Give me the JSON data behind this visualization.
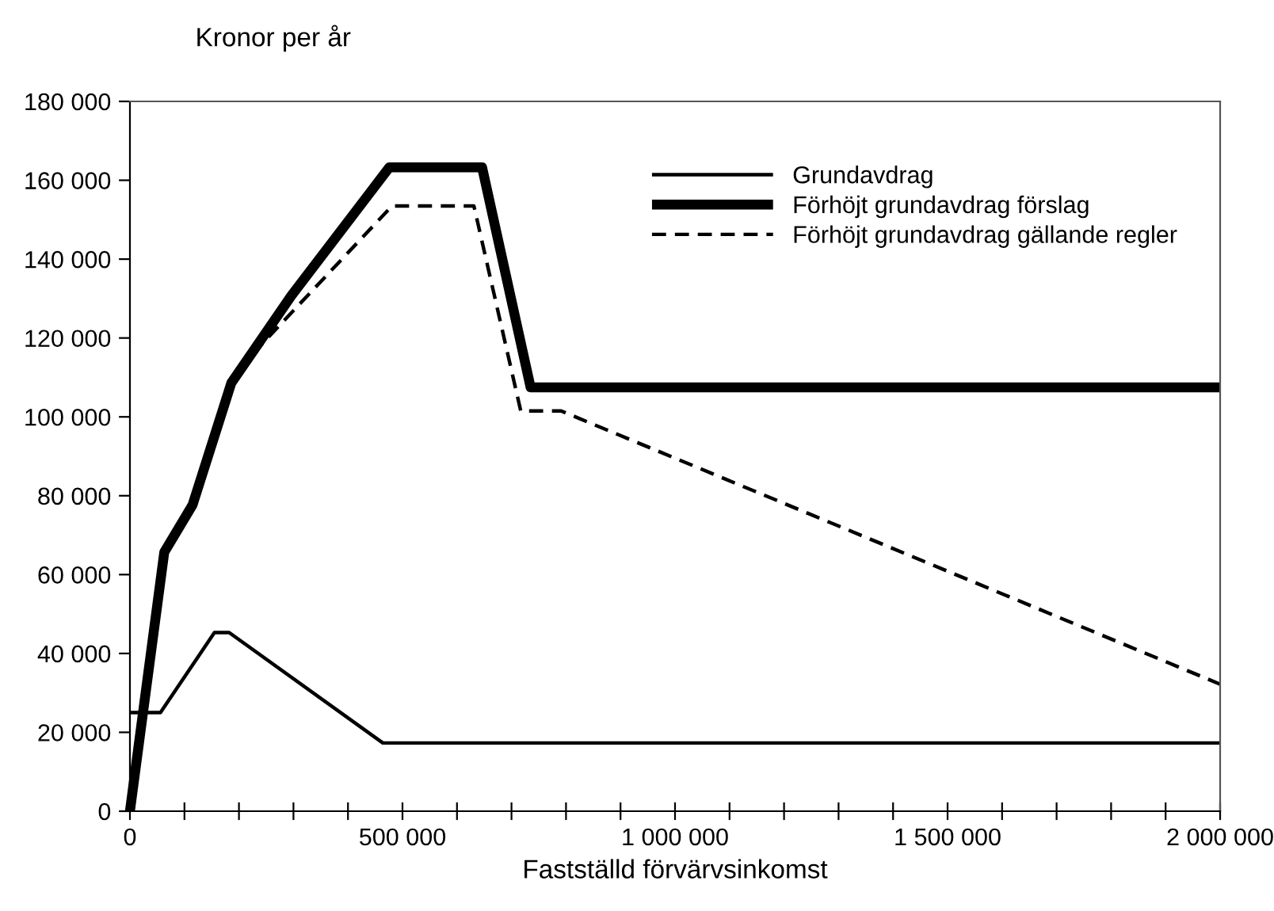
{
  "chart_data": {
    "type": "line",
    "ylabel": "Kronor per år",
    "xlabel": "Fastställd förvärvsinkomst",
    "xlim": [
      0,
      2000000
    ],
    "ylim": [
      0,
      180000
    ],
    "xticks": [
      {
        "value": 0,
        "label": "0"
      },
      {
        "value": 100000,
        "label": null
      },
      {
        "value": 200000,
        "label": null
      },
      {
        "value": 300000,
        "label": null
      },
      {
        "value": 400000,
        "label": null
      },
      {
        "value": 500000,
        "label": "500 000"
      },
      {
        "value": 600000,
        "label": null
      },
      {
        "value": 700000,
        "label": null
      },
      {
        "value": 800000,
        "label": null
      },
      {
        "value": 900000,
        "label": null
      },
      {
        "value": 1000000,
        "label": "1 000 000"
      },
      {
        "value": 1100000,
        "label": null
      },
      {
        "value": 1200000,
        "label": null
      },
      {
        "value": 1300000,
        "label": null
      },
      {
        "value": 1400000,
        "label": null
      },
      {
        "value": 1500000,
        "label": "1 500 000"
      },
      {
        "value": 1600000,
        "label": null
      },
      {
        "value": 1700000,
        "label": null
      },
      {
        "value": 1800000,
        "label": null
      },
      {
        "value": 1900000,
        "label": null
      },
      {
        "value": 2000000,
        "label": "2 000 000"
      }
    ],
    "yticks": [
      {
        "value": 0,
        "label": "0"
      },
      {
        "value": 20000,
        "label": "20 000"
      },
      {
        "value": 40000,
        "label": "40 000"
      },
      {
        "value": 60000,
        "label": "60 000"
      },
      {
        "value": 80000,
        "label": "80 000"
      },
      {
        "value": 100000,
        "label": "100 000"
      },
      {
        "value": 120000,
        "label": "120 000"
      },
      {
        "value": 140000,
        "label": "140 000"
      },
      {
        "value": 160000,
        "label": "160 000"
      },
      {
        "value": 180000,
        "label": "180 000"
      }
    ],
    "grid": false,
    "legend": "top right",
    "marker": "none",
    "series": [
      {
        "name": "Grundavdrag",
        "color": "#000000",
        "line_style": "solid",
        "x": [
          0,
          56000,
          155000,
          182000,
          464000,
          2000000
        ],
        "values": [
          25000,
          25000,
          45300,
          45300,
          17300,
          17300
        ]
      },
      {
        "name": "Förhöjt grundavdrag förslag",
        "color": "#000000",
        "line_style": "solid",
        "x": [
          0,
          63000,
          115000,
          186000,
          296000,
          476000,
          646000,
          735000,
          2000000
        ],
        "values": [
          0,
          65700,
          77700,
          108600,
          130700,
          163300,
          163300,
          107500,
          107500
        ]
      },
      {
        "name": "Förhöjt grundavdrag gällande regler",
        "color": "#000000",
        "line_style": "dashed",
        "x": [
          0,
          63000,
          115000,
          186000,
          243000,
          481000,
          631000,
          717000,
          791000,
          2000000
        ],
        "values": [
          0,
          65700,
          77700,
          108600,
          118600,
          153500,
          153500,
          101500,
          101500,
          32200
        ]
      }
    ]
  }
}
